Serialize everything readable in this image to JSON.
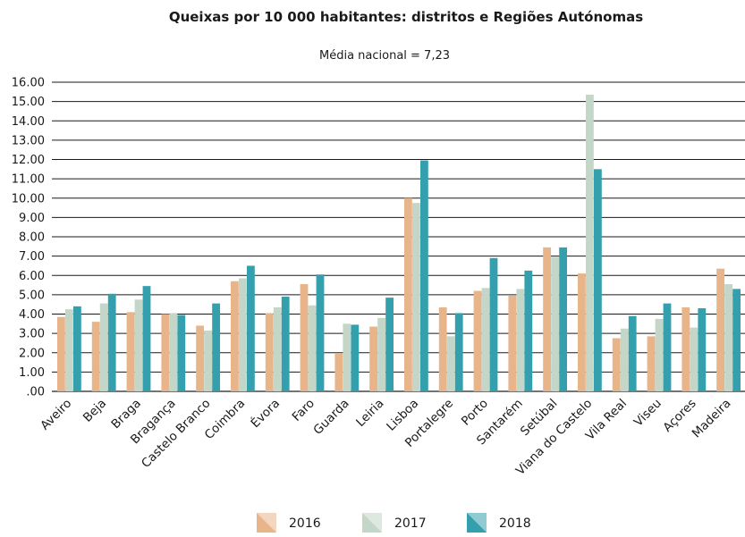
{
  "chart_data": {
    "type": "bar",
    "title": "Queixas por 10 000 habitantes: distritos e Regiões Autónomas",
    "subtitle": "Média nacional = 7,23",
    "xlabel": "",
    "ylabel": "",
    "ylim": [
      0,
      16
    ],
    "yticks": [
      ".00",
      "1.00",
      "2.00",
      "3.00",
      "4.00",
      "5.00",
      "6.00",
      "7.00",
      "8.00",
      "9.00",
      "10.00",
      "11.00",
      "12.00",
      "13.00",
      "14.00",
      "15.00",
      "16.00"
    ],
    "grid": true,
    "legend_position": "bottom",
    "categories": [
      "Aveiro",
      "Beja",
      "Braga",
      "Bragança",
      "Castelo Branco",
      "Coimbra",
      "Évora",
      "Faro",
      "Guarda",
      "Leiria",
      "Lisboa",
      "Portalegre",
      "Porto",
      "Santarém",
      "Setúbal",
      "Viana do Castelo",
      "Vila Real",
      "Viseu",
      "Açores",
      "Madeira"
    ],
    "series": [
      {
        "name": "2016",
        "color": "#e8b48a",
        "values": [
          3.85,
          3.6,
          4.1,
          4.0,
          3.4,
          5.7,
          4.05,
          5.55,
          1.95,
          3.35,
          10.0,
          4.35,
          5.2,
          4.95,
          7.45,
          6.1,
          2.75,
          2.85,
          4.35,
          6.35
        ]
      },
      {
        "name": "2017",
        "color": "#c3d6c8",
        "values": [
          4.25,
          4.55,
          4.75,
          4.05,
          3.15,
          5.85,
          4.35,
          4.45,
          3.5,
          3.8,
          9.75,
          2.85,
          5.35,
          5.3,
          6.95,
          15.35,
          3.25,
          3.75,
          3.3,
          5.55
        ]
      },
      {
        "name": "2018",
        "color": "#34a0ad",
        "values": [
          4.4,
          5.05,
          5.45,
          3.95,
          4.55,
          6.5,
          4.9,
          6.05,
          3.45,
          4.85,
          11.95,
          4.05,
          6.9,
          6.25,
          7.45,
          11.5,
          3.9,
          4.55,
          4.3,
          5.3
        ]
      }
    ]
  }
}
